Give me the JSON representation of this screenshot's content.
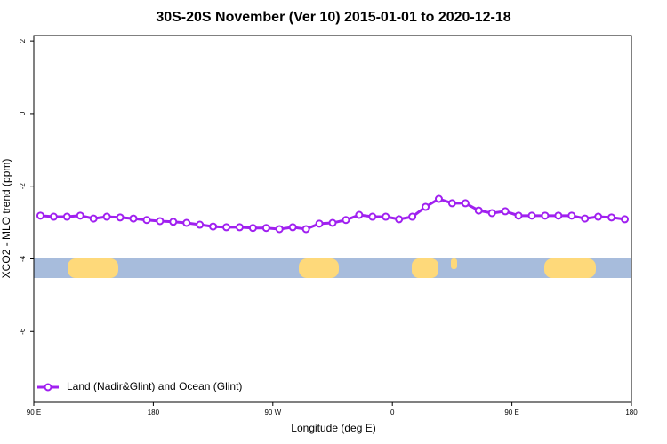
{
  "chart_data": {
    "type": "line",
    "title": "30S-20S November (Ver 10)   2015-01-01 to 2020-12-18",
    "x_label": "Longitude (deg E)",
    "y_label": "XCO2 - MLO trend (ppm)",
    "xlim": [
      90,
      540
    ],
    "ylim": [
      -7.95,
      2.15
    ],
    "xticks": [
      {
        "value": 90,
        "label": "90 E"
      },
      180,
      {
        "value": 270,
        "label": "90 W"
      },
      {
        "value": 360,
        "label": "0"
      },
      {
        "value": 450,
        "label": "90 E"
      },
      {
        "value": 540,
        "label": "180"
      }
    ],
    "yticks": [
      -6,
      -4,
      -2,
      0,
      2
    ],
    "legend": "bottom-left",
    "x": [
      95,
      105,
      115,
      125,
      135,
      145,
      155,
      165,
      175,
      185,
      195,
      205,
      215,
      225,
      235,
      245,
      255,
      265,
      275,
      285,
      295,
      305,
      315,
      325,
      335,
      345,
      355,
      365,
      375,
      385,
      395,
      405,
      415,
      425,
      435,
      445,
      455,
      465,
      475,
      485,
      495,
      505,
      515,
      525,
      535
    ],
    "series": [
      {
        "name": "Land (Nadir&Glint) and Ocean (Glint)",
        "color": "#a020f0",
        "values": [
          -2.81,
          -2.84,
          -2.84,
          -2.81,
          -2.89,
          -2.84,
          -2.86,
          -2.89,
          -2.93,
          -2.96,
          -2.98,
          -3.01,
          -3.06,
          -3.11,
          -3.13,
          -3.13,
          -3.15,
          -3.15,
          -3.18,
          -3.13,
          -3.18,
          -3.03,
          -3.01,
          -2.93,
          -2.79,
          -2.84,
          -2.84,
          -2.91,
          -2.84,
          -2.57,
          -2.35,
          -2.47,
          -2.47,
          -2.67,
          -2.74,
          -2.69,
          -2.81,
          -2.81,
          -2.81,
          -2.81,
          -2.81,
          -2.89,
          -2.84,
          -2.86,
          -2.91
        ]
      }
    ]
  }
}
